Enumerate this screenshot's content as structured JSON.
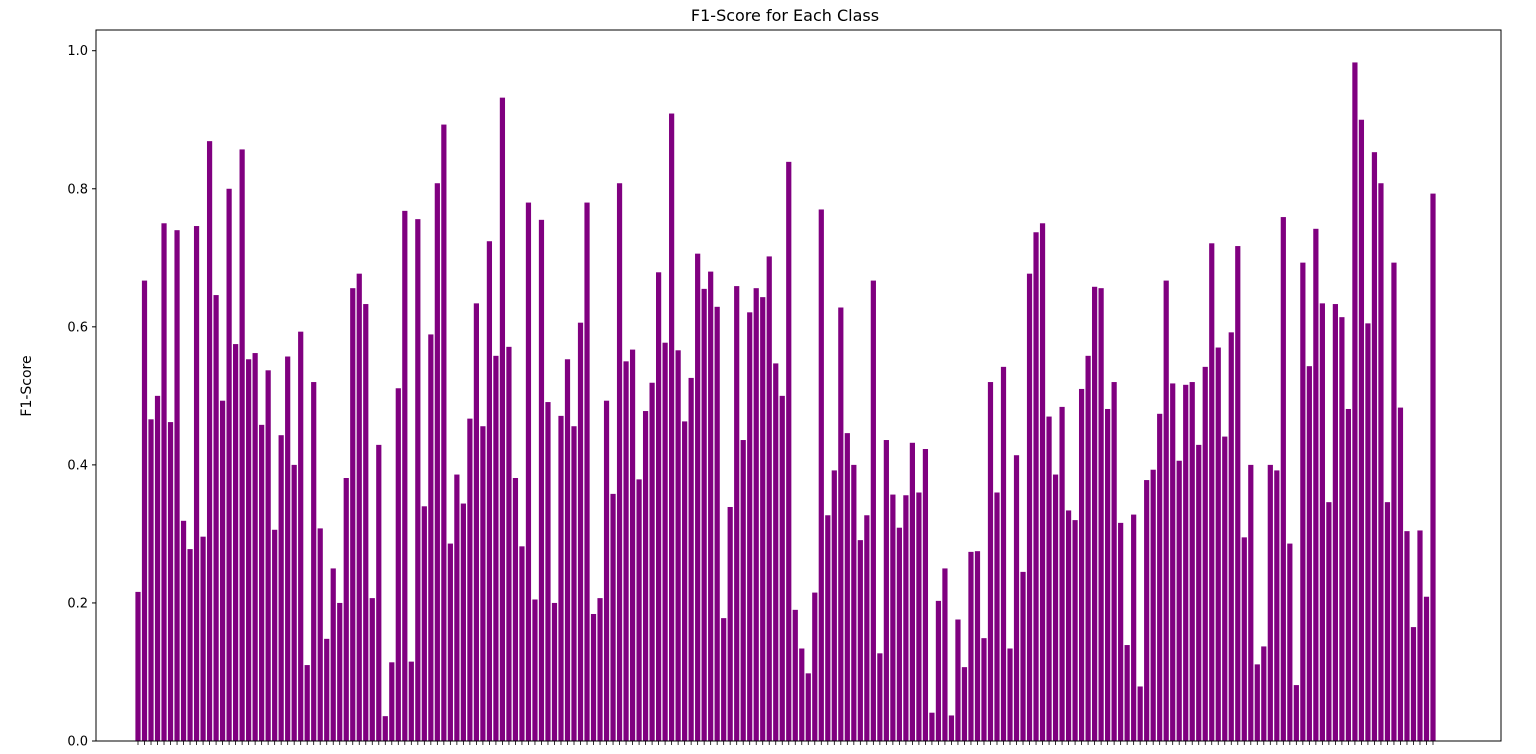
{
  "chart_data": {
    "type": "bar",
    "title": "F1-Score for Each Class",
    "xlabel": "",
    "ylabel": "F1-Score",
    "ylim": [
      0,
      1.03
    ],
    "yticks": [
      "0.0",
      "0.2",
      "0.4",
      "0.6",
      "0.8",
      "1.0"
    ],
    "grid": false,
    "bar_color": "#800080",
    "values": [
      0.216,
      0.667,
      0.466,
      0.5,
      0.75,
      0.462,
      0.74,
      0.319,
      0.278,
      0.746,
      0.296,
      0.869,
      0.646,
      0.493,
      0.8,
      0.575,
      0.857,
      0.553,
      0.562,
      0.458,
      0.537,
      0.306,
      0.443,
      0.557,
      0.4,
      0.593,
      0.11,
      0.52,
      0.308,
      0.148,
      0.25,
      0.2,
      0.381,
      0.656,
      0.677,
      0.633,
      0.207,
      0.429,
      0.036,
      0.114,
      0.511,
      0.768,
      0.115,
      0.756,
      0.34,
      0.589,
      0.808,
      0.893,
      0.286,
      0.386,
      0.344,
      0.467,
      0.634,
      0.456,
      0.724,
      0.558,
      0.932,
      0.571,
      0.381,
      0.282,
      0.78,
      0.205,
      0.755,
      0.491,
      0.2,
      0.471,
      0.553,
      0.456,
      0.606,
      0.78,
      0.184,
      0.207,
      0.493,
      0.358,
      0.808,
      0.55,
      0.567,
      0.379,
      0.478,
      0.519,
      0.679,
      0.577,
      0.909,
      0.566,
      0.463,
      0.526,
      0.706,
      0.655,
      0.68,
      0.629,
      0.178,
      0.339,
      0.659,
      0.436,
      0.621,
      0.656,
      0.643,
      0.702,
      0.547,
      0.5,
      0.839,
      0.19,
      0.134,
      0.098,
      0.215,
      0.77,
      0.327,
      0.392,
      0.628,
      0.446,
      0.4,
      0.291,
      0.327,
      0.667,
      0.127,
      0.436,
      0.357,
      0.309,
      0.356,
      0.432,
      0.36,
      0.423,
      0.041,
      0.203,
      0.25,
      0.037,
      0.176,
      0.107,
      0.274,
      0.275,
      0.149,
      0.52,
      0.36,
      0.542,
      0.134,
      0.414,
      0.245,
      0.677,
      0.737,
      0.75,
      0.47,
      0.386,
      0.484,
      0.334,
      0.32,
      0.51,
      0.558,
      0.658,
      0.656,
      0.481,
      0.52,
      0.316,
      0.139,
      0.328,
      0.079,
      0.378,
      0.393,
      0.474,
      0.667,
      0.518,
      0.406,
      0.516,
      0.52,
      0.429,
      0.542,
      0.721,
      0.57,
      0.441,
      0.592,
      0.717,
      0.295,
      0.4,
      0.111,
      0.137,
      0.4,
      0.392,
      0.759,
      0.286,
      0.081,
      0.693,
      0.543,
      0.742,
      0.634,
      0.346,
      0.633,
      0.614,
      0.481,
      0.983,
      0.9,
      0.605,
      0.853,
      0.808,
      0.346,
      0.693,
      0.483,
      0.304,
      0.165,
      0.305,
      0.209,
      0.793
    ]
  }
}
